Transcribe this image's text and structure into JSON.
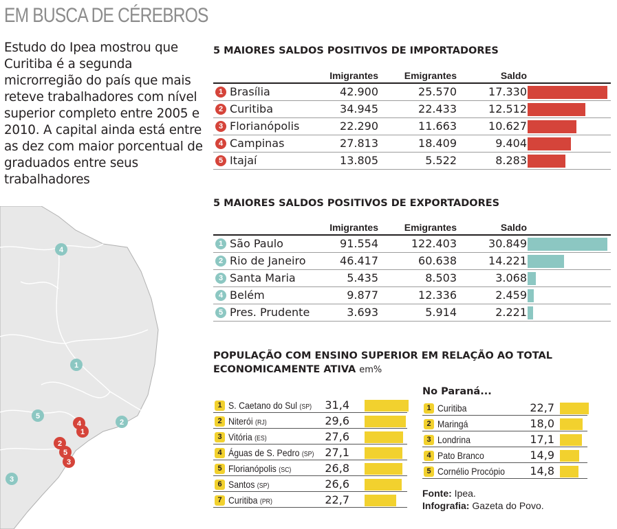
{
  "page": {
    "title": "EM BUSCA DE CÉREBROS",
    "intro": "Estudo do Ipea mostrou que Curitiba é a segunda microrregião do país que mais reteve trabalhadores com nível superior completo entre 2005 e 2010. A capital ainda está entre as dez com maior porcentual de graduados entre seus trabalhadores"
  },
  "colors": {
    "importers_bar": "#d5443a",
    "exporters_bar": "#8cc7c2",
    "population_bar": "#f2d12e",
    "title_gray": "#8c8c8c",
    "map_land": "#e8e8e8",
    "map_border": "#b0b0b0"
  },
  "map": {
    "markers": [
      {
        "label": "4",
        "color": "#8cc7c2"
      },
      {
        "label": "1",
        "color": "#8cc7c2"
      },
      {
        "label": "5",
        "color": "#8cc7c2"
      },
      {
        "label": "2",
        "color": "#8cc7c2"
      },
      {
        "label": "4",
        "color": "#d5443a"
      },
      {
        "label": "1",
        "color": "#d5443a"
      },
      {
        "label": "2",
        "color": "#d5443a"
      },
      {
        "label": "5",
        "color": "#d5443a"
      },
      {
        "label": "3",
        "color": "#d5443a"
      },
      {
        "label": "3",
        "color": "#8cc7c2"
      }
    ]
  },
  "chart_data": [
    {
      "type": "table",
      "title": "5 MAIORES SALDOS POSITIVOS DE IMPORTADORES",
      "columns": [
        "Imigrantes",
        "Emigrantes",
        "Saldo"
      ],
      "bar_column": "Saldo",
      "bar_max": 17330,
      "rows": [
        {
          "rank": "1",
          "name": "Brasília",
          "imigrantes": "42.900",
          "emigrantes": "25.570",
          "saldo": "17.330",
          "saldo_value": 17330
        },
        {
          "rank": "2",
          "name": "Curitiba",
          "imigrantes": "34.945",
          "emigrantes": "22.433",
          "saldo": "12.512",
          "saldo_value": 12512
        },
        {
          "rank": "3",
          "name": "Florianópolis",
          "imigrantes": "22.290",
          "emigrantes": "11.663",
          "saldo": "10.627",
          "saldo_value": 10627
        },
        {
          "rank": "4",
          "name": "Campinas",
          "imigrantes": "27.813",
          "emigrantes": "18.409",
          "saldo": "9.404",
          "saldo_value": 9404
        },
        {
          "rank": "5",
          "name": "Itajaí",
          "imigrantes": "13.805",
          "emigrantes": "5.522",
          "saldo": "8.283",
          "saldo_value": 8283
        }
      ]
    },
    {
      "type": "table",
      "title": "5 MAIORES SALDOS POSITIVOS DE EXPORTADORES",
      "columns": [
        "Imigrantes",
        "Emigrantes",
        "Saldo"
      ],
      "bar_column": "Saldo",
      "bar_max": 30849,
      "rows": [
        {
          "rank": "1",
          "name": "São Paulo",
          "imigrantes": "91.554",
          "emigrantes": "122.403",
          "saldo": "30.849",
          "saldo_value": 30849
        },
        {
          "rank": "2",
          "name": "Rio de Janeiro",
          "imigrantes": "46.417",
          "emigrantes": "60.638",
          "saldo": "14.221",
          "saldo_value": 14221
        },
        {
          "rank": "3",
          "name": "Santa Maria",
          "imigrantes": "5.435",
          "emigrantes": "8.503",
          "saldo": "3.068",
          "saldo_value": 3068
        },
        {
          "rank": "4",
          "name": "Belém",
          "imigrantes": "9.877",
          "emigrantes": "12.336",
          "saldo": "2.459",
          "saldo_value": 2459
        },
        {
          "rank": "5",
          "name": "Pres. Prudente",
          "imigrantes": "3.693",
          "emigrantes": "5.914",
          "saldo": "2.221",
          "saldo_value": 2221
        }
      ]
    },
    {
      "type": "bar",
      "title": "POPULAÇÃO COM ENSINO SUPERIOR EM RELAÇÃO AO TOTAL",
      "title_line2": "ECONOMICAMENTE ATIVA",
      "unit": "em%",
      "bar_max": 31.4,
      "rows": [
        {
          "rank": "1",
          "name": "S. Caetano do Sul",
          "uf": "(SP)",
          "value_label": "31,4",
          "value": 31.4
        },
        {
          "rank": "2",
          "name": "Niterói",
          "uf": "(RJ)",
          "value_label": "29,6",
          "value": 29.6
        },
        {
          "rank": "3",
          "name": "Vitória",
          "uf": "(ES)",
          "value_label": "27,6",
          "value": 27.6
        },
        {
          "rank": "4",
          "name": "Águas de S. Pedro",
          "uf": "(SP)",
          "value_label": "27,1",
          "value": 27.1
        },
        {
          "rank": "5",
          "name": "Florianópolis",
          "uf": "(SC)",
          "value_label": "26,8",
          "value": 26.8
        },
        {
          "rank": "6",
          "name": "Santos",
          "uf": "(SP)",
          "value_label": "26,6",
          "value": 26.6
        },
        {
          "rank": "7",
          "name": "Curitiba",
          "uf": "(PR)",
          "value_label": "22,7",
          "value": 22.7
        }
      ]
    },
    {
      "type": "bar",
      "title": "No Paraná...",
      "bar_max": 31.4,
      "rows": [
        {
          "rank": "1",
          "name": "Curitiba",
          "value_label": "22,7",
          "value": 22.7
        },
        {
          "rank": "2",
          "name": "Maringá",
          "value_label": "18,0",
          "value": 18.0
        },
        {
          "rank": "3",
          "name": "Londrina",
          "value_label": "17,1",
          "value": 17.1
        },
        {
          "rank": "4",
          "name": "Pato Branco",
          "value_label": "14,9",
          "value": 14.9
        },
        {
          "rank": "5",
          "name": "Cornélio Procópio",
          "value_label": "14,8",
          "value": 14.8
        }
      ]
    }
  ],
  "credits": {
    "source_label": "Fonte:",
    "source": "Ipea.",
    "graphic_label": "Infografia:",
    "graphic": "Gazeta do Povo."
  }
}
